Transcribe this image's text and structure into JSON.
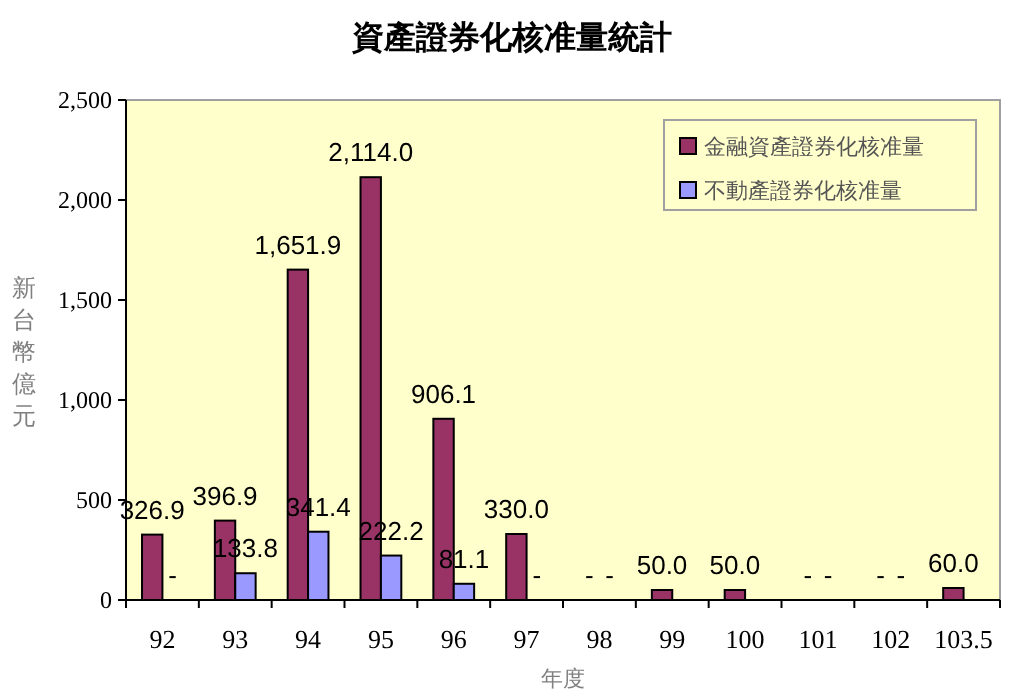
{
  "chart_data": {
    "type": "bar",
    "title": "資產證券化核准量統計",
    "xlabel": "年度",
    "ylabel": "新台幣億元",
    "categories": [
      "92",
      "93",
      "94",
      "95",
      "96",
      "97",
      "98",
      "99",
      "100",
      "101",
      "102",
      "103.5"
    ],
    "series": [
      {
        "name": "金融資產證券化核准量",
        "color": "#993366",
        "values": [
          326.9,
          396.9,
          1651.9,
          2114.0,
          906.1,
          330.0,
          0,
          50.0,
          50.0,
          0,
          0,
          60.0
        ],
        "value_labels": [
          "326.9",
          "396.9",
          "1,651.9",
          "2,114.0",
          "906.1",
          "330.0",
          "-",
          "50.0",
          "50.0",
          "-",
          "-",
          "60.0"
        ]
      },
      {
        "name": "不動產證券化核准量",
        "color": "#9999ff",
        "values": [
          0,
          133.8,
          341.4,
          222.2,
          81.1,
          0,
          0,
          null,
          null,
          0,
          0,
          null
        ],
        "value_labels": [
          "-",
          "133.8",
          "341.4",
          "222.2",
          "81.1",
          "-",
          "-",
          null,
          null,
          "-",
          "-",
          null
        ]
      }
    ],
    "ylim": [
      0,
      2500
    ],
    "yticks": [
      0,
      {
        "value": 500,
        "label": "500"
      },
      {
        "value": 1000,
        "label": "1,000"
      },
      {
        "value": 1500,
        "label": "1,500"
      },
      {
        "value": 2000,
        "label": "2,000"
      },
      {
        "value": 2500,
        "label": "2,500"
      }
    ],
    "grid": false,
    "legend": "top right"
  }
}
